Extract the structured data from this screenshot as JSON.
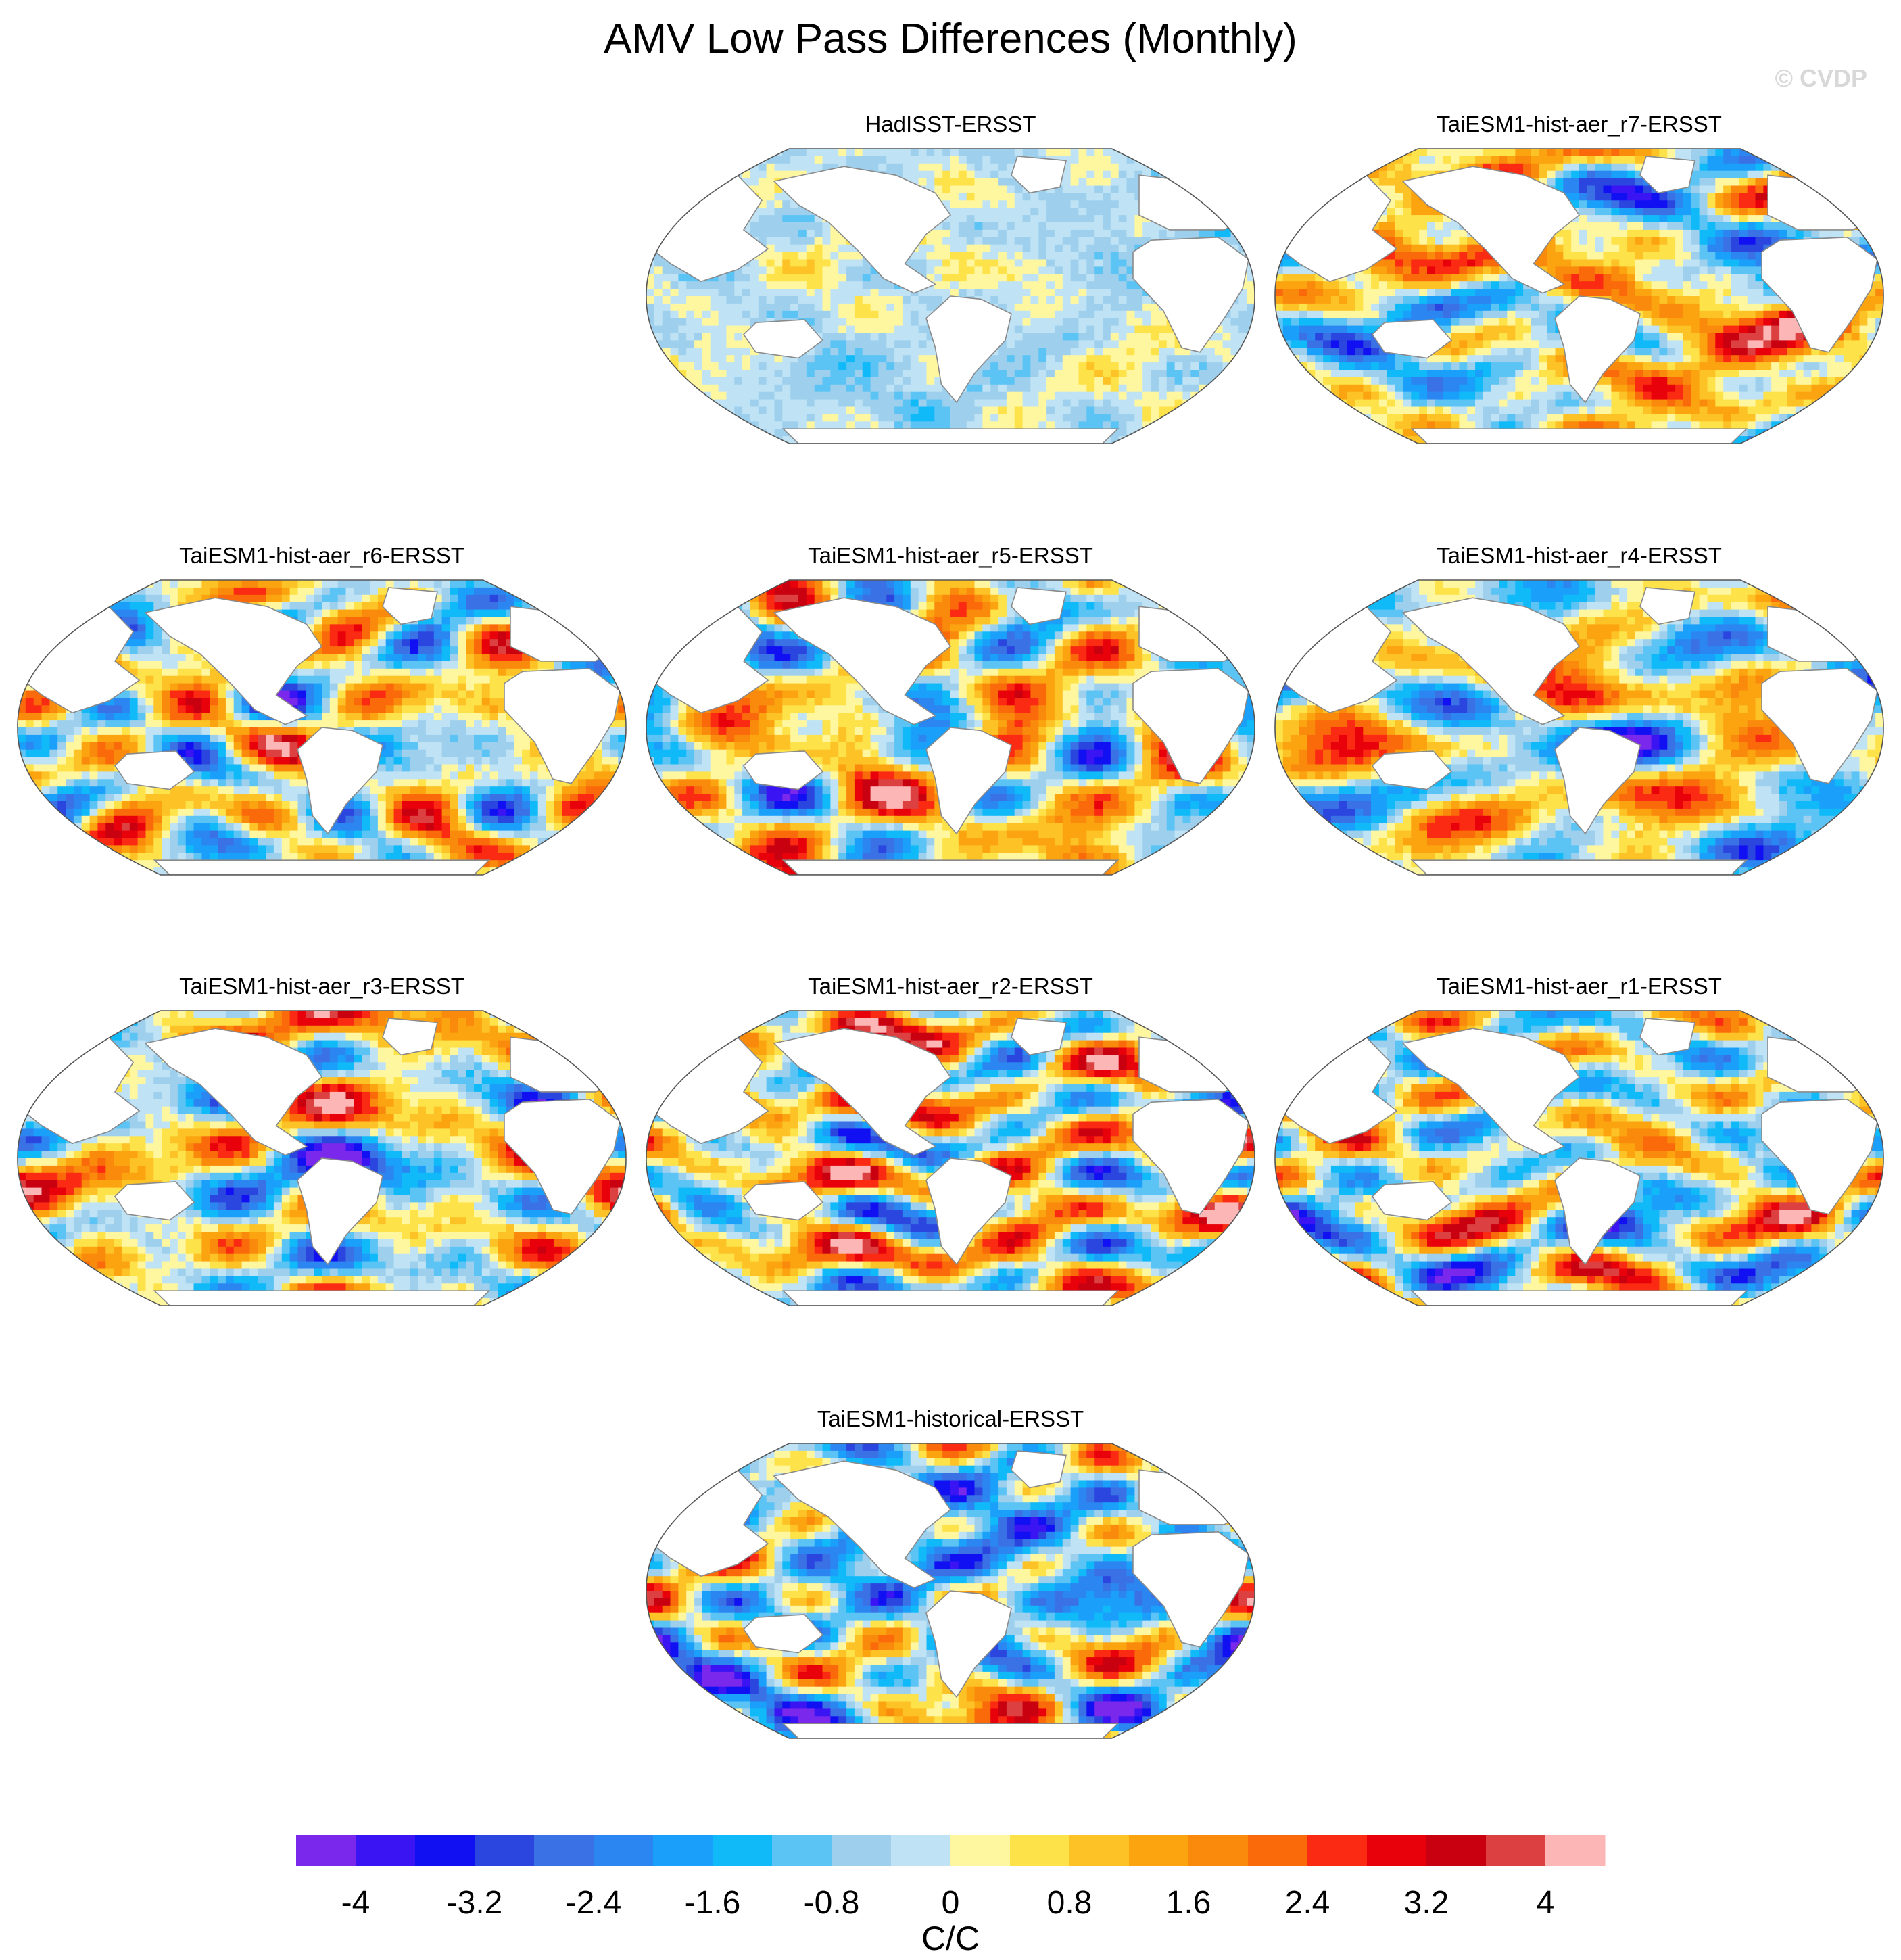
{
  "figure": {
    "title": "AMV Low Pass Differences (Monthly)",
    "watermark": "© CVDP",
    "colors": {
      "background": "#ffffff",
      "land": "#ffffff",
      "coast": "#8a8a8a",
      "watermark": "#d8d8d8"
    }
  },
  "chart_data": {
    "type": "heatmap",
    "title": "AMV Low Pass Differences (Monthly)",
    "projection": "Robinson",
    "grid": false,
    "panels": [
      {
        "title": "HadISST-ERSST",
        "seed": 3,
        "amp": 0.85,
        "bias": -0.25
      },
      {
        "title": "TaiESM1-hist-aer_r7-ERSST",
        "seed": 7,
        "amp": 3.3,
        "bias": 0.2
      },
      {
        "title": "TaiESM1-hist-aer_r6-ERSST",
        "seed": 11,
        "amp": 3.0,
        "bias": 0.1
      },
      {
        "title": "TaiESM1-hist-aer_r5-ERSST",
        "seed": 17,
        "amp": 3.2,
        "bias": 0.3
      },
      {
        "title": "TaiESM1-hist-aer_r4-ERSST",
        "seed": 23,
        "amp": 3.1,
        "bias": 0.0
      },
      {
        "title": "TaiESM1-hist-aer_r3-ERSST",
        "seed": 29,
        "amp": 3.2,
        "bias": 0.1
      },
      {
        "title": "TaiESM1-hist-aer_r2-ERSST",
        "seed": 37,
        "amp": 3.3,
        "bias": 0.4
      },
      {
        "title": "TaiESM1-hist-aer_r1-ERSST",
        "seed": 41,
        "amp": 3.2,
        "bias": 0.0
      },
      {
        "title": "TaiESM1-historical-ERSST",
        "seed": 53,
        "amp": 3.6,
        "bias": -0.6
      }
    ],
    "colorbar": {
      "units": "C/C",
      "levels": [
        -4.4,
        -4,
        -3.6,
        -3.2,
        -2.8,
        -2.4,
        -2,
        -1.6,
        -1.2,
        -0.8,
        -0.4,
        0,
        0.4,
        0.8,
        1.2,
        1.6,
        2,
        2.4,
        2.8,
        3.2,
        3.6,
        4,
        4.4
      ],
      "tick_labels": [
        "-4",
        "-3.2",
        "-2.4",
        "-1.6",
        "-0.8",
        "0",
        "0.8",
        "1.6",
        "2.4",
        "3.2",
        "4"
      ],
      "tick_values": [
        -4,
        -3.2,
        -2.4,
        -1.6,
        -0.8,
        0,
        0.8,
        1.6,
        2.4,
        3.2,
        4
      ],
      "colors": [
        "#7a28ec",
        "#3a14f2",
        "#1010f2",
        "#2a46de",
        "#3a72e6",
        "#2c86f2",
        "#1aa0fa",
        "#10baf8",
        "#5cc4f4",
        "#9ed0ee",
        "#bfe3f5",
        "#fff7a0",
        "#fde24a",
        "#fcc226",
        "#fba410",
        "#fa8a0c",
        "#fb6a0a",
        "#fb2a12",
        "#e8000a",
        "#c80010",
        "#dc4040",
        "#fdb6b6"
      ]
    }
  }
}
